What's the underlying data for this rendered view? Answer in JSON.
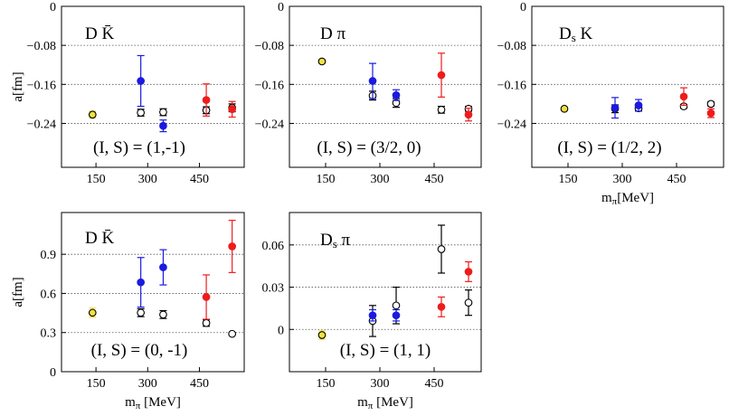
{
  "chart_data": [
    {
      "type": "scatter",
      "title": "D K̄",
      "annotation": "(I, S) = (1,-1)",
      "ylabel": "a[fm]",
      "xlabel": "",
      "xticks": [
        150,
        300,
        450
      ],
      "yticks": [
        0,
        -0.08,
        -0.16,
        -0.24
      ],
      "ytick_labels": [
        "0",
        "−0.08",
        "−0.16",
        "−0.24"
      ],
      "xtick_labels": [
        "150",
        "300",
        "450"
      ],
      "xlim": [
        50,
        580
      ],
      "ylim": [
        -0.33,
        0
      ],
      "grid": "dotted horizontal at ticks",
      "points": [
        {
          "x": 140,
          "y": -0.222,
          "err": 0.007,
          "color": "#f0e040",
          "filled": true
        },
        {
          "x": 280,
          "y": -0.218,
          "err": 0.007,
          "color": "#000000",
          "filled": false
        },
        {
          "x": 345,
          "y": -0.217,
          "err": 0.007,
          "color": "#000000",
          "filled": false
        },
        {
          "x": 470,
          "y": -0.213,
          "err": 0.007,
          "color": "#000000",
          "filled": false
        },
        {
          "x": 545,
          "y": -0.208,
          "err": 0.008,
          "color": "#000000",
          "filled": false
        },
        {
          "x": 280,
          "y": -0.153,
          "err": 0.052,
          "color": "#1a1ae0",
          "filled": true
        },
        {
          "x": 345,
          "y": -0.245,
          "err": 0.012,
          "color": "#1a1ae0",
          "filled": true
        },
        {
          "x": 470,
          "y": -0.192,
          "err": 0.033,
          "color": "#ee1c1c",
          "filled": true
        },
        {
          "x": 545,
          "y": -0.211,
          "err": 0.016,
          "color": "#ee1c1c",
          "filled": true
        }
      ]
    },
    {
      "type": "scatter",
      "title": "D π",
      "annotation": "(I, S) = (3/2, 0)",
      "ylabel": "",
      "xlabel": "",
      "xticks": [
        150,
        300,
        450
      ],
      "yticks": [
        0,
        -0.08,
        -0.16,
        -0.24
      ],
      "ytick_labels": [
        "0",
        "−0.08",
        "−0.16",
        "−0.24"
      ],
      "xtick_labels": [
        "150",
        "300",
        "450"
      ],
      "xlim": [
        50,
        580
      ],
      "ylim": [
        -0.33,
        0
      ],
      "grid": "dotted horizontal at ticks",
      "points": [
        {
          "x": 140,
          "y": -0.113,
          "err": 0.004,
          "color": "#f0e040",
          "filled": true
        },
        {
          "x": 280,
          "y": -0.183,
          "err": 0.009,
          "color": "#000000",
          "filled": false
        },
        {
          "x": 345,
          "y": -0.198,
          "err": 0.009,
          "color": "#000000",
          "filled": false
        },
        {
          "x": 470,
          "y": -0.212,
          "err": 0.007,
          "color": "#000000",
          "filled": false
        },
        {
          "x": 545,
          "y": -0.21,
          "err": 0.005,
          "color": "#000000",
          "filled": false
        },
        {
          "x": 280,
          "y": -0.153,
          "err": 0.036,
          "color": "#1a1ae0",
          "filled": true
        },
        {
          "x": 345,
          "y": -0.182,
          "err": 0.011,
          "color": "#1a1ae0",
          "filled": true
        },
        {
          "x": 470,
          "y": -0.141,
          "err": 0.045,
          "color": "#ee1c1c",
          "filled": true
        },
        {
          "x": 545,
          "y": -0.222,
          "err": 0.013,
          "color": "#ee1c1c",
          "filled": true
        }
      ]
    },
    {
      "type": "scatter",
      "title": "Ds K",
      "title_main": "D",
      "title_sub": "s",
      "title_tail": " K",
      "annotation": "(I, S) = (1/2, 2)",
      "ylabel": "",
      "xlabel": "mπ[MeV]",
      "xlabel_main": "m",
      "xlabel_sub": "π",
      "xlabel_tail": "[MeV]",
      "xticks": [
        150,
        300,
        450
      ],
      "yticks": [
        0,
        -0.08,
        -0.16,
        -0.24
      ],
      "ytick_labels": [
        "0",
        "−0.08",
        "−0.16",
        "−0.24"
      ],
      "xtick_labels": [
        "150",
        "300",
        "450"
      ],
      "xlim": [
        50,
        580
      ],
      "ylim": [
        -0.33,
        0
      ],
      "grid": "dotted horizontal at ticks",
      "points": [
        {
          "x": 140,
          "y": -0.21,
          "err": 0.004,
          "color": "#f0e040",
          "filled": true
        },
        {
          "x": 280,
          "y": -0.21,
          "err": 0.008,
          "color": "#000000",
          "filled": false
        },
        {
          "x": 345,
          "y": -0.209,
          "err": 0.005,
          "color": "#000000",
          "filled": false
        },
        {
          "x": 470,
          "y": -0.205,
          "err": 0.004,
          "color": "#000000",
          "filled": false
        },
        {
          "x": 545,
          "y": -0.2,
          "err": 0.004,
          "color": "#000000",
          "filled": false
        },
        {
          "x": 280,
          "y": -0.208,
          "err": 0.021,
          "color": "#1a1ae0",
          "filled": true
        },
        {
          "x": 345,
          "y": -0.203,
          "err": 0.012,
          "color": "#1a1ae0",
          "filled": true
        },
        {
          "x": 470,
          "y": -0.185,
          "err": 0.018,
          "color": "#ee1c1c",
          "filled": true
        },
        {
          "x": 545,
          "y": -0.219,
          "err": 0.009,
          "color": "#ee1c1c",
          "filled": true
        }
      ]
    },
    {
      "type": "scatter",
      "title": "D K̄",
      "annotation": "(I, S) = (0, -1)",
      "ylabel": "a[fm]",
      "xlabel": "mπ [MeV]",
      "xlabel_main": "m",
      "xlabel_sub": "π",
      "xlabel_tail": " [MeV]",
      "xticks": [
        150,
        300,
        450
      ],
      "yticks": [
        0,
        0.3,
        0.6,
        0.9
      ],
      "ytick_labels": [
        "0",
        "0.3",
        "0.6",
        "0.9"
      ],
      "xtick_labels": [
        "150",
        "300",
        "450"
      ],
      "xlim": [
        50,
        580
      ],
      "ylim": [
        0,
        1.22
      ],
      "grid": "dotted horizontal at ticks",
      "points": [
        {
          "x": 140,
          "y": 0.452,
          "err": 0.035,
          "color": "#f0e040",
          "filled": true
        },
        {
          "x": 280,
          "y": 0.452,
          "err": 0.03,
          "color": "#000000",
          "filled": false
        },
        {
          "x": 345,
          "y": 0.438,
          "err": 0.03,
          "color": "#000000",
          "filled": false
        },
        {
          "x": 470,
          "y": 0.373,
          "err": 0.025,
          "color": "#000000",
          "filled": false
        },
        {
          "x": 545,
          "y": 0.29,
          "err": 0.008,
          "color": "#000000",
          "filled": false
        },
        {
          "x": 280,
          "y": 0.685,
          "err": 0.19,
          "color": "#1a1ae0",
          "filled": true
        },
        {
          "x": 345,
          "y": 0.8,
          "err": 0.135,
          "color": "#1a1ae0",
          "filled": true
        },
        {
          "x": 470,
          "y": 0.572,
          "err": 0.17,
          "color": "#ee1c1c",
          "filled": true
        },
        {
          "x": 545,
          "y": 0.96,
          "err": 0.2,
          "color": "#ee1c1c",
          "filled": true
        }
      ]
    },
    {
      "type": "scatter",
      "title": "Ds π",
      "title_main": "D",
      "title_sub": "s",
      "title_tail": " π",
      "annotation": "(I, S) = (1, 1)",
      "ylabel": "",
      "xlabel": "mπ [MeV]",
      "xlabel_main": "m",
      "xlabel_sub": "π",
      "xlabel_tail": " [MeV]",
      "xticks": [
        150,
        300,
        450
      ],
      "yticks": [
        0,
        0.03,
        0.06
      ],
      "ytick_labels": [
        "0",
        "0.03",
        "0.06"
      ],
      "xtick_labels": [
        "150",
        "300",
        "450"
      ],
      "xlim": [
        50,
        580
      ],
      "ylim": [
        -0.03,
        0.083
      ],
      "grid": "dotted horizontal at ticks",
      "points": [
        {
          "x": 140,
          "y": -0.004,
          "err": 0.003,
          "color": "#f0e040",
          "filled": true
        },
        {
          "x": 280,
          "y": 0.006,
          "err": 0.011,
          "color": "#000000",
          "filled": false
        },
        {
          "x": 345,
          "y": 0.017,
          "err": 0.013,
          "color": "#000000",
          "filled": false
        },
        {
          "x": 470,
          "y": 0.057,
          "err": 0.017,
          "color": "#000000",
          "filled": false
        },
        {
          "x": 545,
          "y": 0.019,
          "err": 0.009,
          "color": "#000000",
          "filled": false
        },
        {
          "x": 280,
          "y": 0.01,
          "err": 0.004,
          "color": "#1a1ae0",
          "filled": true
        },
        {
          "x": 345,
          "y": 0.01,
          "err": 0.004,
          "color": "#1a1ae0",
          "filled": true
        },
        {
          "x": 470,
          "y": 0.016,
          "err": 0.007,
          "color": "#ee1c1c",
          "filled": true
        },
        {
          "x": 545,
          "y": 0.041,
          "err": 0.007,
          "color": "#ee1c1c",
          "filled": true
        }
      ]
    }
  ]
}
